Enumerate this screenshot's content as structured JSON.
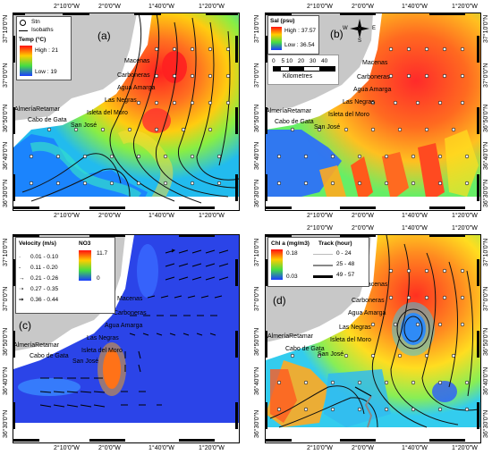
{
  "coords": {
    "top_lon": [
      "2°10'0\"W",
      "2°0'0\"W",
      "1°40'0\"W",
      "1°20'0\"W"
    ],
    "bottom_lon": [
      "2°10'0\"W",
      "2°0'0\"W",
      "1°40'0\"W",
      "1°20'0\"W"
    ],
    "lat": [
      "37°10'0\"N",
      "37°0'0\"N",
      "36°50'0\"N",
      "36°40'0\"N",
      "36°30'0\"N"
    ]
  },
  "places": {
    "macenas": "Macenas",
    "carboneras": "Carboneras",
    "agua_amarga": "Agua Amarga",
    "las_negras": "Las Negras",
    "isleta": "Isleta del Moro",
    "almeria": "AlmeríaRetamar",
    "cabo": "Cabo de Gata",
    "san_jose": "San José"
  },
  "panel_a": {
    "label": "(a)",
    "legend": {
      "stn": "Stn",
      "isobaths": "Isobaths",
      "title": "Temp (°C)",
      "high": "High : 21",
      "low": "Low : 19"
    }
  },
  "panel_b": {
    "label": "(b)",
    "legend": {
      "title": "Sal (psu)",
      "high": "High : 37.57",
      "low": "Low : 36.54"
    },
    "scale": {
      "ticks": [
        "0",
        "5",
        "10",
        "20",
        "30",
        "40"
      ],
      "unit": "Kilometres"
    },
    "compass": {
      "n": "N",
      "s": "S",
      "e": "E",
      "w": "W"
    }
  },
  "panel_c": {
    "label": "(c)",
    "velocity": {
      "title": "Velocity (m/s)",
      "classes": [
        "0.01 - 0.10",
        "0.11 - 0.20",
        "0.21 - 0.26",
        "0.27 - 0.35",
        "0.36 - 0.44"
      ]
    },
    "no3": {
      "title": "NO3",
      "high": "11.7",
      "low": "0"
    }
  },
  "panel_d": {
    "label": "(d)",
    "chl": {
      "title": "Chl a (mg/m3)",
      "high": "0.18",
      "low": "0.03"
    },
    "track": {
      "title": "Track (hour)",
      "classes": [
        "0 - 24",
        "25 - 48",
        "49 - 57"
      ]
    }
  }
}
